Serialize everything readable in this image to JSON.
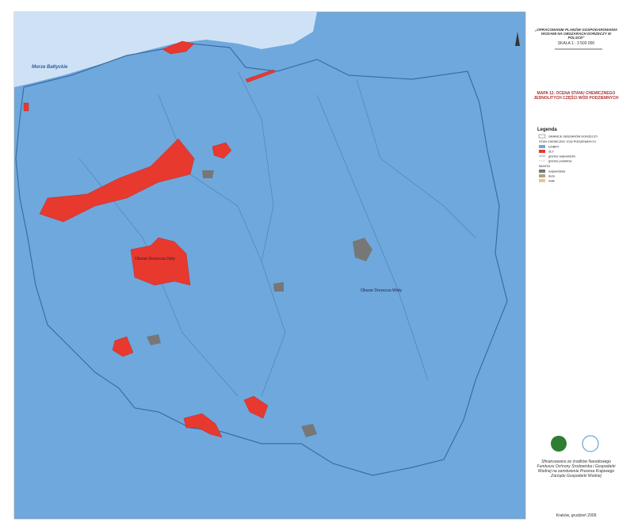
{
  "map": {
    "sea_label": "Morze Bałtyckie",
    "basin_labels": [
      "Obszar Dorzecza Wisły",
      "Obszar Dorzecza Odry"
    ]
  },
  "header": {
    "title": "„OPRACOWANIE PLANÓW GOSPODAROWANIA WODAMI NA OBSZARACH DORZECZY W POLSCE”",
    "scale": "SKALA 1 : 3 500 000",
    "map_title": "MAPA 12. OCENA STANU CHEMICZNEGO JEDNOLITYCH CZĘŚCI WÓD PODZIEMNYCH"
  },
  "legend": {
    "title": "Legenda",
    "items": [
      "GRANICE OBSZARÓW DORZECZY",
      "STAN CHEMICZNY JCW PODZIEMNYCH",
      "DOBRY",
      "ZŁY",
      "granice województw",
      "granice powiatów",
      "MIASTA",
      "wojewódzkie",
      "duże",
      "małe"
    ]
  },
  "footer": {
    "funding": "Sfinansowano ze środków Narodowego Funduszu Ochrony Środowiska i Gospodarki Wodnej na zamówienie Prezesa Krajowego Zarządu Gospodarki Wodnej",
    "place_date": "Kraków, grudzień 2009"
  }
}
